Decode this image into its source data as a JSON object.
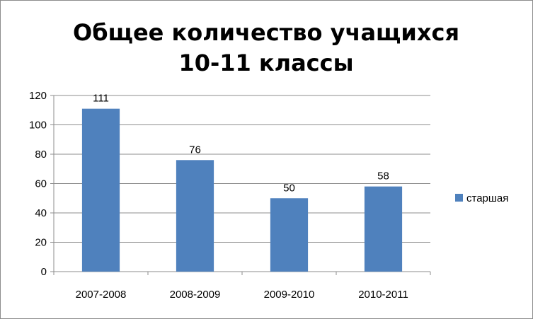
{
  "chart_data": {
    "type": "bar",
    "title_lines": [
      "Общее количество учащихся",
      "10-11 классы"
    ],
    "categories": [
      "2007-2008",
      "2008-2009",
      "2009-2010",
      "2010-2011"
    ],
    "series": [
      {
        "name": "старшая",
        "values": [
          111,
          76,
          50,
          58
        ],
        "color": "#4f81bd"
      }
    ],
    "ylim": [
      0,
      120
    ],
    "yticks": [
      0,
      20,
      40,
      60,
      80,
      100,
      120
    ],
    "grid": true,
    "data_labels": true,
    "legend": "right"
  }
}
